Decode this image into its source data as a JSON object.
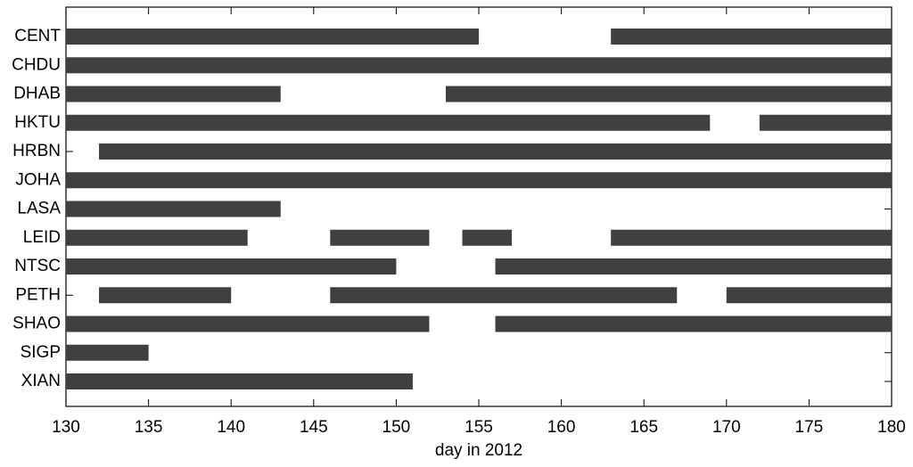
{
  "chart_data": {
    "type": "timeline",
    "xlabel": "day in 2012",
    "categories": [
      "CENT",
      "CHDU",
      "DHAB",
      "HKTU",
      "HRBN",
      "JOHA",
      "LASA",
      "LEID",
      "NTSC",
      "PETH",
      "SHAO",
      "SIGP",
      "XIAN"
    ],
    "segments": [
      [
        [
          130,
          155
        ],
        [
          163,
          180
        ]
      ],
      [
        [
          130,
          180
        ]
      ],
      [
        [
          130,
          143
        ],
        [
          153,
          180
        ]
      ],
      [
        [
          130,
          169
        ],
        [
          172,
          180
        ]
      ],
      [
        [
          132,
          180
        ]
      ],
      [
        [
          130,
          180
        ]
      ],
      [
        [
          130,
          143
        ]
      ],
      [
        [
          130,
          141
        ],
        [
          146,
          152
        ],
        [
          154,
          157
        ],
        [
          163,
          180
        ]
      ],
      [
        [
          130,
          150
        ],
        [
          156,
          180
        ]
      ],
      [
        [
          132,
          140
        ],
        [
          146,
          167
        ],
        [
          170,
          180
        ]
      ],
      [
        [
          130,
          152
        ],
        [
          156,
          180
        ]
      ],
      [
        [
          130,
          135
        ]
      ],
      [
        [
          130,
          151
        ]
      ]
    ],
    "color": "#404040",
    "xlim": [
      130,
      180
    ],
    "xticks": [
      130,
      135,
      140,
      145,
      150,
      155,
      160,
      165,
      170,
      175,
      180
    ]
  }
}
